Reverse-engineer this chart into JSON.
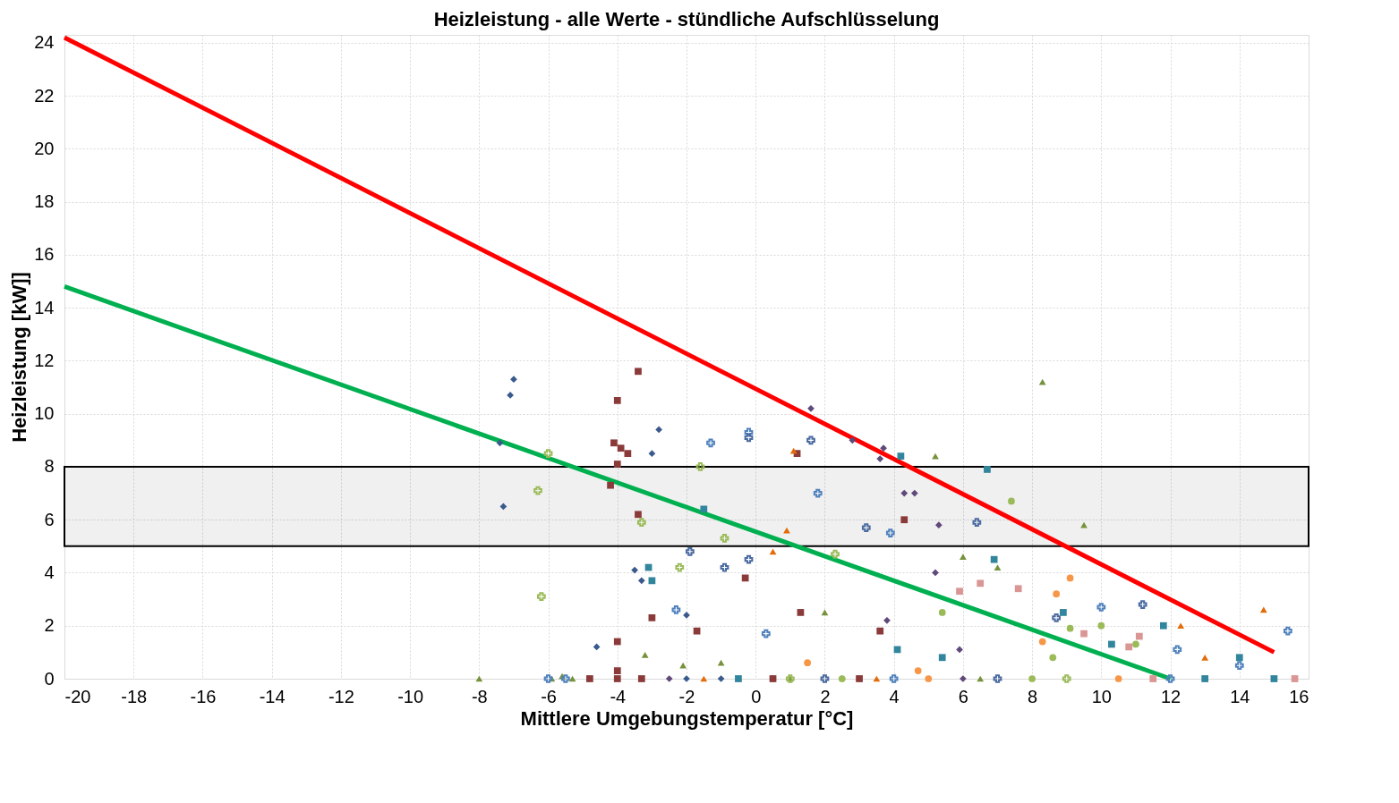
{
  "chart_data": {
    "type": "scatter",
    "title": "Heizleistung - alle Werte - stündliche Aufschlüsselung",
    "xlabel": "Mittlere Umgebungstemperatur [°C]",
    "ylabel": "Heizleistung [kW]]",
    "xlim": [
      -20,
      16
    ],
    "ylim": [
      0,
      24.3
    ],
    "xticks": [
      -20,
      -18,
      -16,
      -14,
      -12,
      -10,
      -8,
      -6,
      -4,
      -2,
      0,
      2,
      4,
      6,
      8,
      10,
      12,
      14,
      16
    ],
    "yticks": [
      0,
      2,
      4,
      6,
      8,
      10,
      12,
      14,
      16,
      18,
      20,
      22,
      24
    ],
    "grid": true,
    "bands": [
      {
        "axis": "y",
        "from": 5,
        "to": 8,
        "color": "#000000"
      }
    ],
    "series": [
      {
        "marker": "diamond",
        "color": "#3a5a8c",
        "x": [
          -7,
          -7.1,
          -7.4,
          -7.3,
          -2.8,
          -3,
          -3.3,
          -2,
          -4.6,
          -3.5,
          -2,
          -1,
          0.5,
          2.5
        ],
        "values": [
          11.3,
          10.7,
          8.9,
          6.5,
          9.4,
          8.5,
          3.7,
          2.4,
          1.2,
          4.1,
          0,
          0,
          0,
          0
        ]
      },
      {
        "marker": "square",
        "color": "#8b3a3a",
        "x": [
          -3.4,
          -4,
          -4.1,
          -3.9,
          -3.7,
          -4,
          -4.2,
          -3.4,
          -3,
          -4,
          -4,
          -4,
          -3.3,
          -1.7,
          1.3,
          4.3,
          1.2,
          -0.3,
          3.6,
          -4.8,
          0.5,
          3
        ],
        "values": [
          11.6,
          10.5,
          8.9,
          8.7,
          8.5,
          8.1,
          7.3,
          6.2,
          2.3,
          1.4,
          0.3,
          0,
          0,
          1.8,
          2.5,
          6,
          8.5,
          3.8,
          1.8,
          0,
          0,
          0
        ]
      },
      {
        "marker": "triangle",
        "color": "#76923c",
        "x": [
          8.3,
          -8,
          -5.6,
          -5.9,
          -2.1,
          -1,
          5.2,
          9.5,
          6,
          7,
          2,
          -3.2,
          -5.3,
          1,
          6.5
        ],
        "values": [
          11.2,
          0,
          0.1,
          0,
          0.5,
          0.6,
          8.4,
          5.8,
          4.6,
          4.2,
          2.5,
          0.9,
          0,
          0,
          0
        ]
      },
      {
        "marker": "cross",
        "color": "#4f81bd",
        "x": [
          -2.3,
          -1.3,
          -0.2,
          0.3,
          1.8,
          3.9,
          10,
          14,
          15.4,
          12.2,
          -6,
          -5.5,
          4,
          12
        ],
        "values": [
          2.6,
          8.9,
          9.3,
          1.7,
          7.0,
          5.5,
          2.7,
          0.5,
          1.8,
          1.1,
          0,
          0,
          0,
          0
        ]
      },
      {
        "marker": "cross",
        "color": "#4a6aa0",
        "x": [
          -0.2,
          1.6,
          -1.9,
          -0.9,
          -0.2,
          3.2,
          11.2,
          6.4,
          8.7,
          2,
          7
        ],
        "values": [
          9.1,
          9.0,
          4.8,
          4.2,
          4.5,
          5.7,
          2.8,
          5.9,
          2.3,
          0,
          0
        ]
      },
      {
        "marker": "cross",
        "color": "#9bbb59",
        "x": [
          -6,
          -6.3,
          -6.2,
          -3.3,
          -1.6,
          -0.9,
          2.3,
          -2.2,
          1,
          9
        ],
        "values": [
          8.5,
          7.1,
          3.1,
          5.9,
          8,
          5.3,
          4.7,
          4.2,
          0,
          0
        ]
      },
      {
        "marker": "square",
        "color": "#31859c",
        "x": [
          -3.1,
          -1.5,
          -3,
          4.2,
          6.7,
          6.9,
          4.1,
          5.4,
          10.3,
          14,
          11.8,
          8.9,
          -0.5,
          13,
          15
        ],
        "values": [
          4.2,
          6.4,
          3.7,
          8.4,
          7.9,
          4.5,
          1.1,
          0.8,
          1.3,
          0.8,
          2,
          2.5,
          0,
          0,
          0
        ]
      },
      {
        "marker": "circle",
        "color": "#f79646",
        "x": [
          9.1,
          8.7,
          8.3,
          4.7,
          1.5,
          5,
          10.5
        ],
        "values": [
          3.8,
          3.2,
          1.4,
          0.3,
          0.6,
          0,
          0
        ]
      },
      {
        "marker": "triangle",
        "color": "#e36c09",
        "x": [
          0.5,
          1.1,
          13,
          14.7,
          12.3,
          0.9,
          -1.5,
          3.5
        ],
        "values": [
          4.8,
          8.6,
          0.8,
          2.6,
          2.0,
          5.6,
          0,
          0
        ]
      },
      {
        "marker": "diamond",
        "color": "#5f497a",
        "x": [
          1.6,
          2.8,
          3.7,
          4.3,
          4.6,
          3.6,
          5.3,
          5.2,
          3.8,
          5.9,
          -2.5,
          6
        ],
        "values": [
          10.2,
          9.0,
          8.7,
          7.0,
          7.0,
          8.3,
          5.8,
          4.0,
          2.2,
          1.1,
          0,
          0
        ]
      },
      {
        "marker": "circle",
        "color": "#9bbb59",
        "x": [
          7.4,
          5.4,
          9.1,
          10,
          11,
          8.6,
          2.5,
          8
        ],
        "values": [
          6.7,
          2.5,
          1.9,
          2.0,
          1.3,
          0.8,
          0,
          0
        ]
      },
      {
        "marker": "square",
        "color": "#d99694",
        "x": [
          5.9,
          6.5,
          7.6,
          9.5,
          10.8,
          11.1,
          11.5,
          15.6
        ],
        "values": [
          3.3,
          3.6,
          3.4,
          1.7,
          1.2,
          1.6,
          0,
          0
        ]
      },
      {
        "type": "line",
        "marker": "none",
        "color": "#ff0000",
        "x": [
          -20,
          15
        ],
        "values": [
          24.2,
          1.0
        ]
      },
      {
        "type": "line",
        "marker": "none",
        "color": "#00b050",
        "x": [
          -20,
          12
        ],
        "values": [
          14.8,
          0
        ]
      }
    ]
  }
}
